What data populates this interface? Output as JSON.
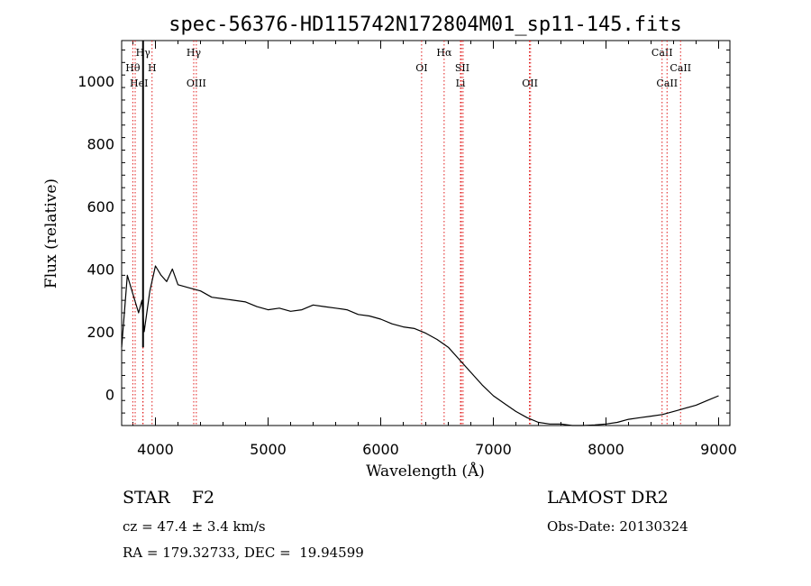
{
  "chart_data": {
    "type": "line",
    "title": "spec-56376-HD115742N172804M01_sp11-145.fits",
    "xlabel": "Wavelength (Å)",
    "ylabel": "Flux (relative)",
    "xlim": [
      3700,
      9100
    ],
    "ylim": [
      -100,
      1130
    ],
    "x_ticks": [
      4000,
      5000,
      6000,
      7000,
      8000,
      9000
    ],
    "y_ticks": [
      0,
      200,
      400,
      600,
      800,
      1000
    ],
    "grid": false,
    "series": [
      {
        "x": [
          3700,
          3750,
          3800,
          3850,
          3880,
          3900,
          3950,
          4000,
          4050,
          4100,
          4150,
          4200,
          4300,
          4400,
          4500,
          4600,
          4700,
          4800,
          4900,
          5000,
          5100,
          5200,
          5300,
          5400,
          5500,
          5600,
          5700,
          5800,
          5900,
          6000,
          6100,
          6200,
          6300,
          6400,
          6500,
          6600,
          6700,
          6800,
          6900,
          7000,
          7100,
          7200,
          7300,
          7400,
          7500,
          7600,
          7700,
          7800,
          7900,
          8000,
          8100,
          8200,
          8300,
          8400,
          8500,
          8600,
          8700,
          8800,
          8900,
          9000
        ],
        "values": [
          150,
          380,
          320,
          260,
          300,
          200,
          330,
          410,
          380,
          360,
          400,
          350,
          340,
          330,
          310,
          305,
          300,
          295,
          280,
          270,
          275,
          265,
          270,
          285,
          280,
          275,
          270,
          255,
          250,
          240,
          225,
          215,
          210,
          195,
          175,
          150,
          110,
          70,
          30,
          -5,
          -30,
          -55,
          -75,
          -90,
          -95,
          -95,
          -100,
          -100,
          -98,
          -95,
          -90,
          -80,
          -75,
          -70,
          -65,
          -55,
          -45,
          -35,
          -20,
          -5
        ]
      }
    ],
    "line_annotations": [
      {
        "label": "Hγ",
        "row": 1,
        "lines": [
          3890
        ]
      },
      {
        "label": "Hθ",
        "row": 2,
        "lines": [
          3799
        ]
      },
      {
        "label": "H",
        "row": 2,
        "lines": [
          3970
        ]
      },
      {
        "label": "HeI",
        "row": 3,
        "lines": [
          3820,
          3888
        ]
      },
      {
        "label": "Hγ",
        "row": 1,
        "lines": [
          4340
        ]
      },
      {
        "label": "OIII",
        "row": 3,
        "lines": [
          4363
        ]
      },
      {
        "label": "OI",
        "row": 2,
        "lines": [
          6363
        ]
      },
      {
        "label": "Hα",
        "row": 1,
        "lines": [
          6563
        ]
      },
      {
        "label": "SII",
        "row": 2,
        "lines": [
          6716,
          6731
        ]
      },
      {
        "label": "Li",
        "row": 3,
        "lines": [
          6708
        ]
      },
      {
        "label": "OII",
        "row": 3,
        "lines": [
          7320,
          7330
        ]
      },
      {
        "label": "CaII",
        "row": 1,
        "lines": [
          8498
        ]
      },
      {
        "label": "CaII",
        "row": 2,
        "lines": [
          8662
        ]
      },
      {
        "label": "CaII",
        "row": 3,
        "lines": [
          8542
        ]
      }
    ]
  },
  "footer": {
    "object_class": "STAR    F2",
    "survey": "LAMOST DR2",
    "redshift": "cz = 47.4 ± 3.4 km/s",
    "obs_date": "Obs-Date: 20130324",
    "coords": "RA = 179.32733, DEC =  19.94599"
  }
}
